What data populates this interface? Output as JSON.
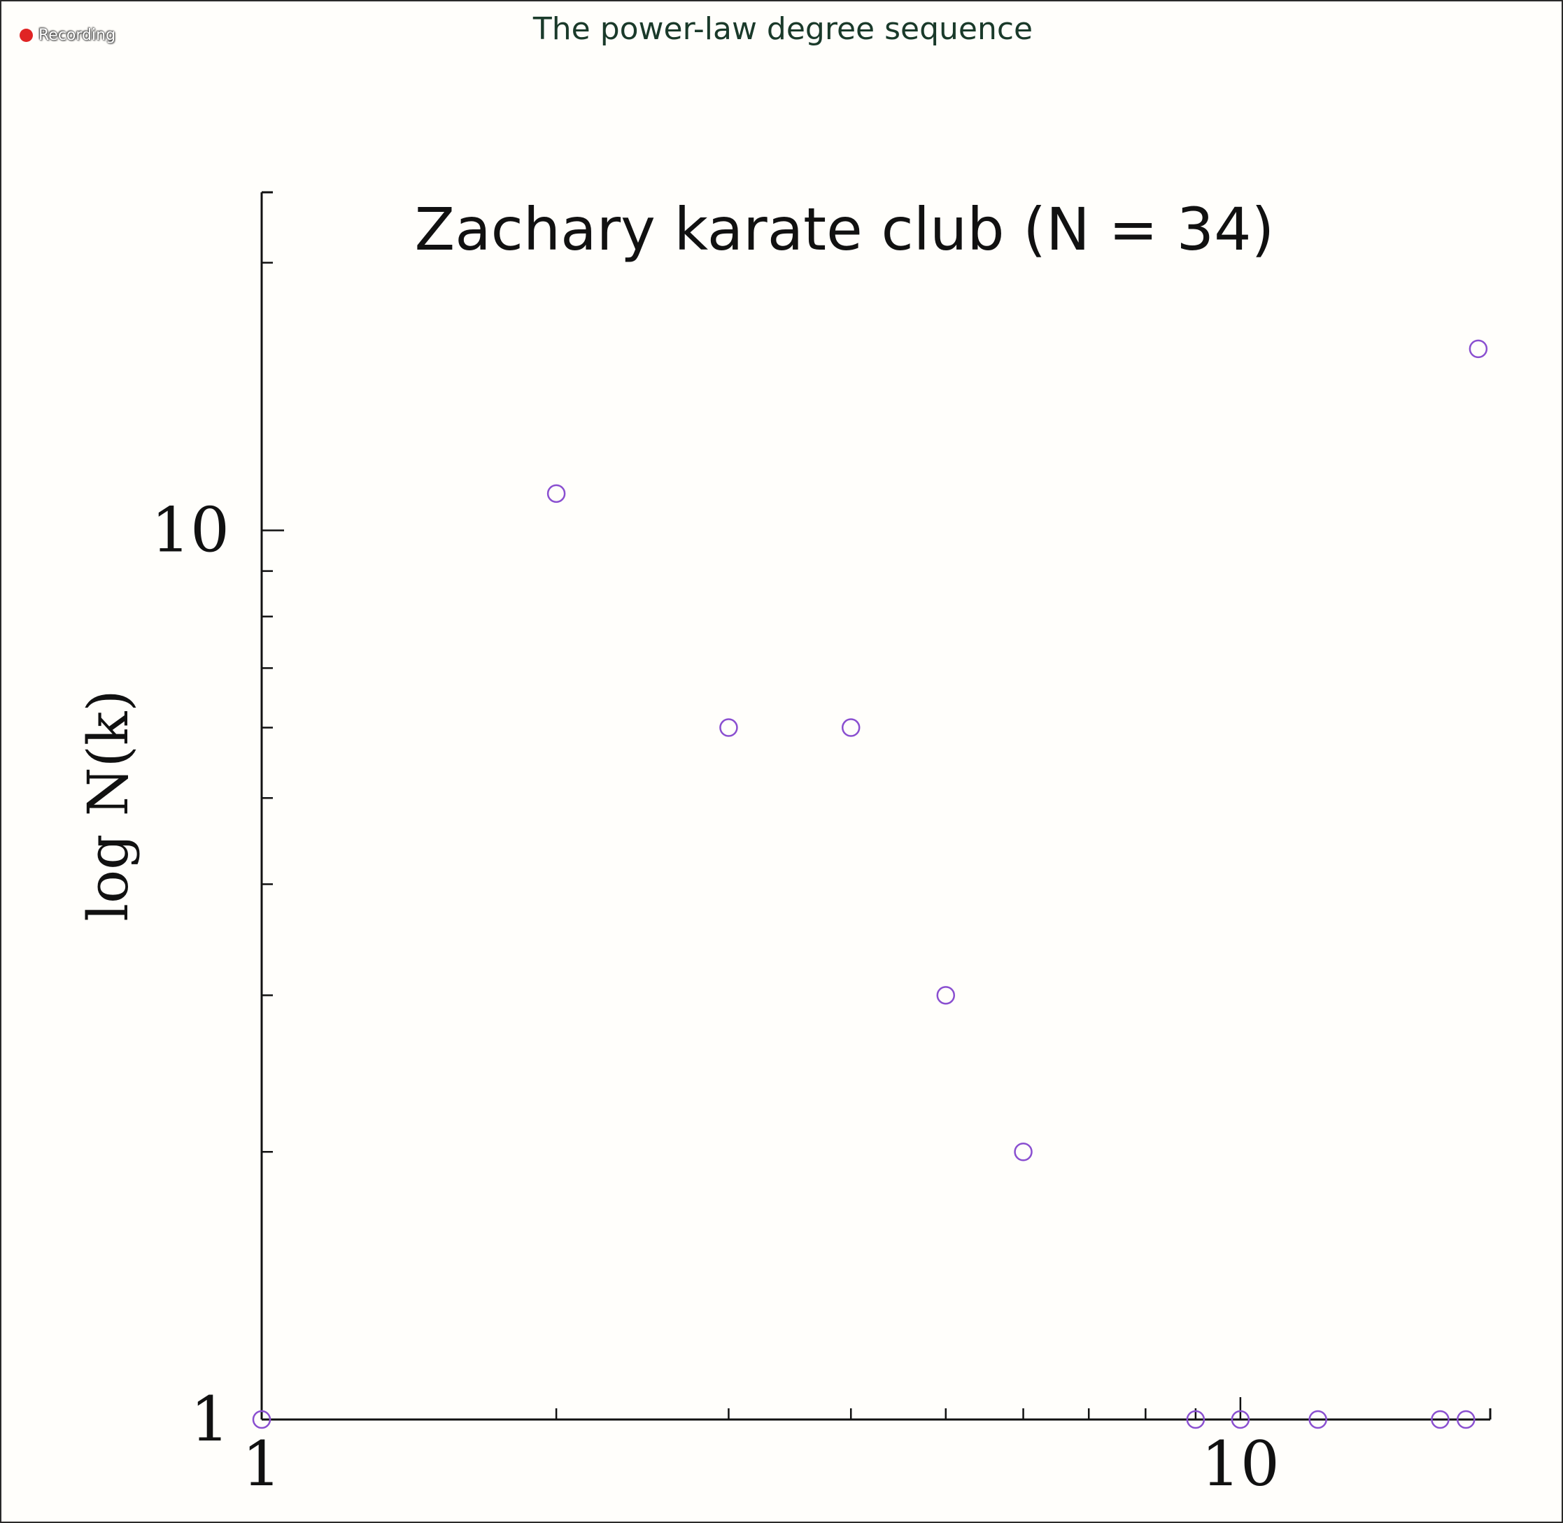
{
  "window": {
    "slide_title": "The power-law degree sequence",
    "recording_label": "Recording"
  },
  "colors": {
    "marker": "#8a4fd0",
    "axis": "#111111",
    "recording_dot": "#e02424"
  },
  "chart_data": {
    "type": "scatter",
    "title": "Zachary karate club (N = 34)",
    "ylabel": "log N(k)",
    "xlabel": "",
    "xscale": "log",
    "yscale": "log",
    "xlim": [
      1,
      18
    ],
    "ylim": [
      1,
      24
    ],
    "x_tick_labels": [
      "1",
      "10"
    ],
    "y_tick_labels": [
      "10",
      "1"
    ],
    "marker": "open-circle",
    "grid": false,
    "x": [
      1,
      2,
      3,
      4,
      5,
      6,
      9,
      10,
      12,
      16,
      17,
      17.5
    ],
    "y": [
      1,
      11,
      6,
      6,
      3,
      2,
      1,
      1,
      1,
      1,
      1,
      16
    ]
  }
}
